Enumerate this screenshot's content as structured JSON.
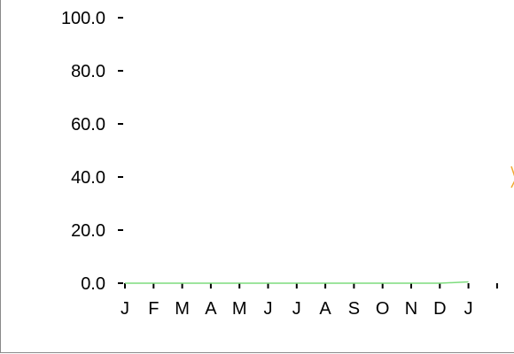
{
  "chart_data": {
    "type": "line",
    "x": [
      "J",
      "F",
      "M",
      "A",
      "M",
      "J",
      "J",
      "A",
      "S",
      "O",
      "N",
      "D",
      "J"
    ],
    "yticks": [
      "0.0",
      "20.0",
      "40.0",
      "60.0",
      "80.0",
      "100.0"
    ],
    "ylim": [
      0,
      100
    ],
    "series": [
      {
        "values": [
          0,
          0,
          0,
          0,
          0,
          0,
          0,
          0,
          0,
          0,
          0,
          0,
          0.5
        ]
      }
    ],
    "grid": false,
    "colors": {
      "line": "#7ddc7d",
      "axis": "#000000",
      "partial_marker": "#f0a830"
    }
  }
}
